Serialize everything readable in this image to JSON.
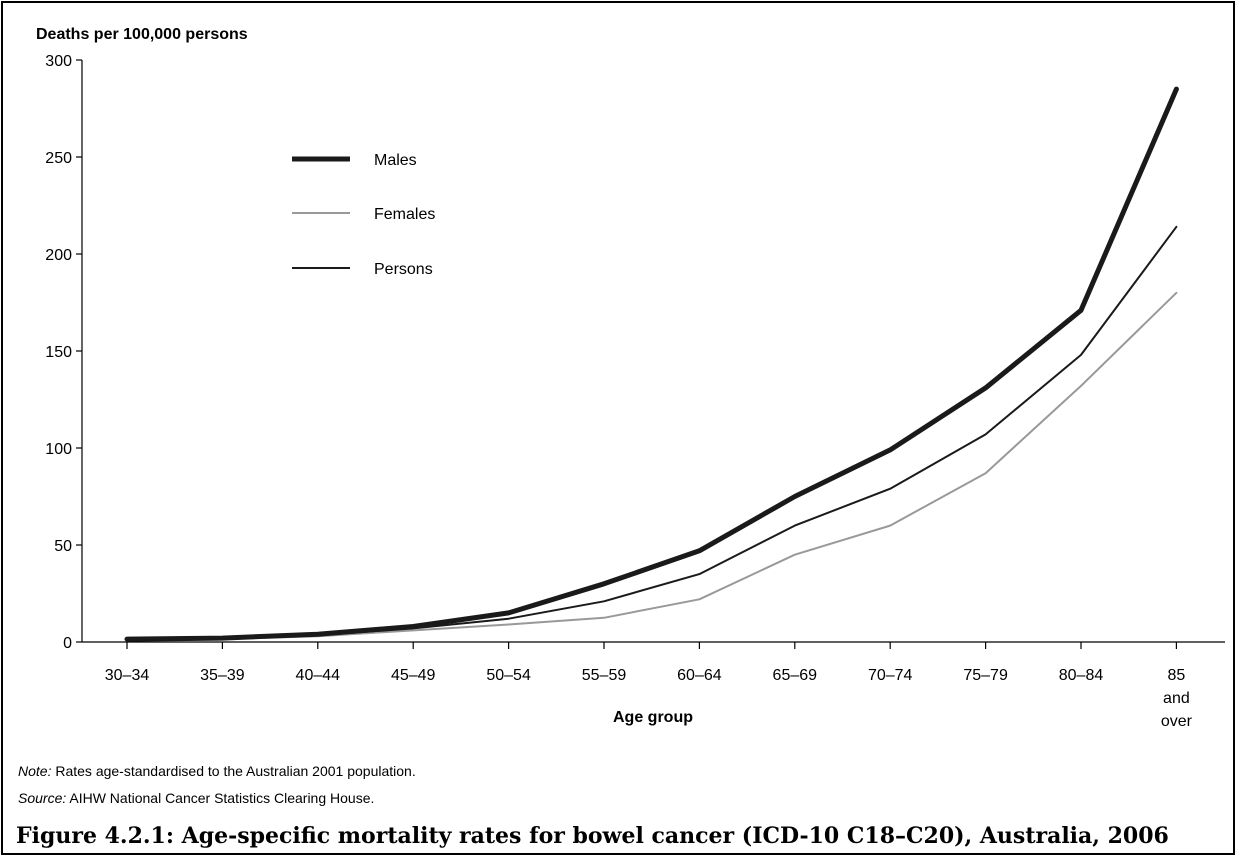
{
  "chart_data": {
    "type": "line",
    "ylabel": "Deaths per 100,000 persons",
    "xlabel": "Age group",
    "ylim": [
      0,
      300
    ],
    "yticks": [
      0,
      50,
      100,
      150,
      200,
      250,
      300
    ],
    "categories": [
      "30–34",
      "35–39",
      "40–44",
      "45–49",
      "50–54",
      "55–59",
      "60–64",
      "65–69",
      "70–74",
      "75–79",
      "80–84",
      "85 and over"
    ],
    "series": [
      {
        "name": "Males",
        "color": "#1a1a1a",
        "width": 5,
        "values": [
          1.5,
          2,
          4,
          8,
          15,
          30,
          47,
          75,
          99,
          131,
          171,
          285
        ]
      },
      {
        "name": "Females",
        "color": "#999999",
        "width": 2,
        "values": [
          1,
          1.5,
          3,
          6,
          9,
          12.5,
          22,
          45,
          60,
          87,
          132,
          180
        ]
      },
      {
        "name": "Persons",
        "color": "#1a1a1a",
        "width": 2,
        "values": [
          1.2,
          1.8,
          3.5,
          7,
          12,
          21,
          35,
          60,
          79,
          107,
          148,
          214
        ]
      }
    ],
    "legend_position": "top-left",
    "grid": false
  },
  "notes": {
    "note_label": "Note:",
    "note_text": " Rates age-standardised to the Australian 2001 population.",
    "source_label": "Source:",
    "source_text": " AIHW National Cancer Statistics Clearing House."
  },
  "caption": "Figure 4.2.1: Age-specific mortality rates for bowel cancer (ICD-10 C18–C20), Australia, 2006"
}
